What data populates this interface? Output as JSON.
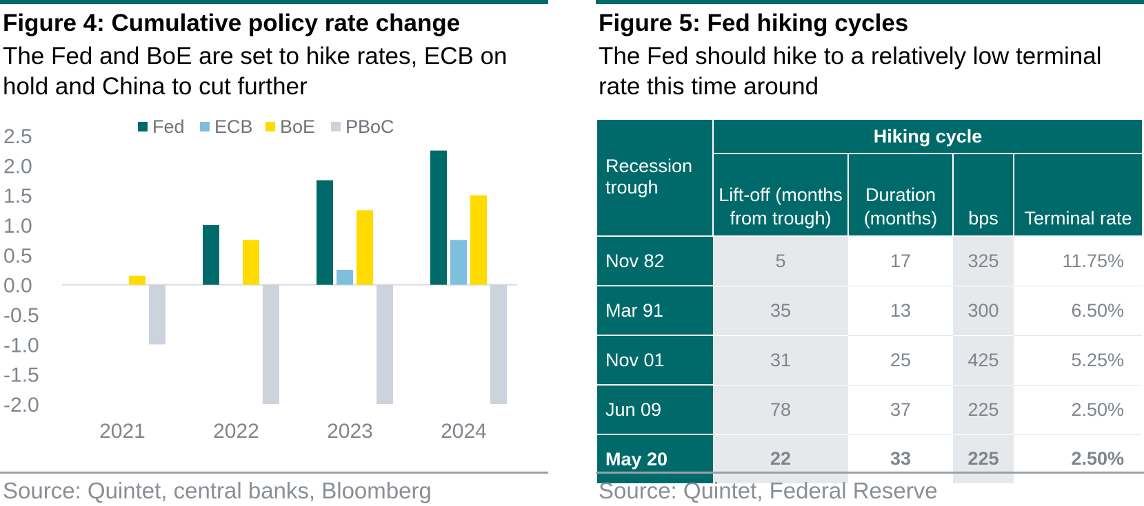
{
  "left": {
    "title": "Figure 4: Cumulative policy rate change",
    "subtitle": "The Fed and BoE are set to hike rates, ECB on hold and China to cut further",
    "source": "Source: Quintet, central banks, Bloomberg"
  },
  "right": {
    "title": "Figure 5: Fed hiking cycles",
    "subtitle": "The Fed should hike to a relatively low terminal rate this time around",
    "source": "Source: Quintet, Federal Reserve"
  },
  "chart_data": {
    "type": "bar",
    "categories": [
      "2021",
      "2022",
      "2023",
      "2024"
    ],
    "series": [
      {
        "name": "Fed",
        "color": "#006a6a",
        "values": [
          0,
          1.0,
          1.75,
          2.25
        ]
      },
      {
        "name": "ECB",
        "color": "#7fbfde",
        "values": [
          0,
          0,
          0.25,
          0.75
        ]
      },
      {
        "name": "BoE",
        "color": "#ffdb00",
        "values": [
          0.15,
          0.75,
          1.25,
          1.5
        ]
      },
      {
        "name": "PBoC",
        "color": "#ccd3dc",
        "values": [
          -1.0,
          -2.0,
          -2.0,
          -2.0
        ]
      }
    ],
    "title": "",
    "xlabel": "",
    "ylabel": "",
    "ylim": [
      -2.0,
      2.5
    ],
    "yticks": [
      "2.5",
      "2.0",
      "1.5",
      "1.0",
      "0.5",
      "0.0",
      "-0.5",
      "-1.0",
      "-1.5",
      "-2.0"
    ],
    "grid": false,
    "legend": "top"
  },
  "table": {
    "group_header": "Hiking cycle",
    "row_header": "Recession trough",
    "columns": [
      "Lift-off (months from trough)",
      "Duration (months)",
      "bps",
      "Terminal rate"
    ],
    "rows": [
      {
        "label": "Nov 82",
        "liftoff": "5",
        "duration": "17",
        "bps": "325",
        "terminal": "11.75%"
      },
      {
        "label": "Mar 91",
        "liftoff": "35",
        "duration": "13",
        "bps": "300",
        "terminal": "6.50%"
      },
      {
        "label": "Nov 01",
        "liftoff": "31",
        "duration": "25",
        "bps": "425",
        "terminal": "5.25%"
      },
      {
        "label": "Jun 09",
        "liftoff": "78",
        "duration": "37",
        "bps": "225",
        "terminal": "2.50%"
      },
      {
        "label": "May 20",
        "liftoff": "22",
        "duration": "33",
        "bps": "225",
        "terminal": "2.50%"
      }
    ]
  }
}
